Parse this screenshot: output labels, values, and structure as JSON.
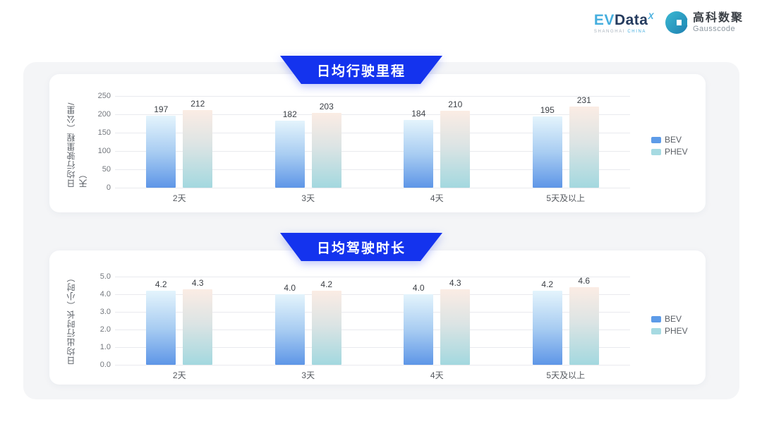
{
  "brand": {
    "evdata": {
      "ev": "EV",
      "data": "Data",
      "x": "X",
      "sub1": "SHANGHAI",
      "sub2": "CHINA"
    },
    "gausscode": {
      "cn": "高科数聚",
      "en": "Gausscode"
    }
  },
  "colors": {
    "banner_blue": "#1433EE",
    "panel_bg": "#F4F5F7",
    "bev_top": "#E4F4FC",
    "bev_mid": "#A9CDF2",
    "bev_bottom": "#5E96E7",
    "phev_top": "#FBECE4",
    "phev_mid": "#DCE4E4",
    "phev_bottom": "#A3D8DF",
    "legend_bev": "#5D9BE8",
    "legend_phev": "#A6DAE2"
  },
  "chart_data": [
    {
      "type": "bar",
      "title": "日均行驶里程",
      "ylabel": "日均行驶里程（公里/天）",
      "categories": [
        "2天",
        "3天",
        "4天",
        "5天及以上"
      ],
      "series": [
        {
          "name": "BEV",
          "values": [
            197,
            182,
            184,
            195
          ],
          "labels": [
            "197",
            "182",
            "184",
            "195"
          ]
        },
        {
          "name": "PHEV",
          "values": [
            212,
            203,
            210,
            231
          ],
          "labels": [
            "212",
            "203",
            "210",
            "231"
          ]
        }
      ],
      "ylim": [
        0,
        250
      ],
      "yticks": [
        "250",
        "200",
        "150",
        "100",
        "50",
        "0"
      ],
      "grid": true,
      "legend_position": "right"
    },
    {
      "type": "bar",
      "title": "日均驾驶时长",
      "ylabel": "日均出行时长（小时）",
      "categories": [
        "2天",
        "3天",
        "4天",
        "5天及以上"
      ],
      "series": [
        {
          "name": "BEV",
          "values": [
            4.2,
            4.0,
            4.0,
            4.2
          ],
          "labels": [
            "4.2",
            "4.0",
            "4.0",
            "4.2"
          ]
        },
        {
          "name": "PHEV",
          "values": [
            4.3,
            4.2,
            4.3,
            4.6
          ],
          "labels": [
            "4.3",
            "4.2",
            "4.3",
            "4.6"
          ]
        }
      ],
      "ylim": [
        0,
        5
      ],
      "yticks": [
        "5.0",
        "4.0",
        "3.0",
        "2.0",
        "1.0",
        "0.0"
      ],
      "grid": true,
      "legend_position": "right"
    }
  ]
}
